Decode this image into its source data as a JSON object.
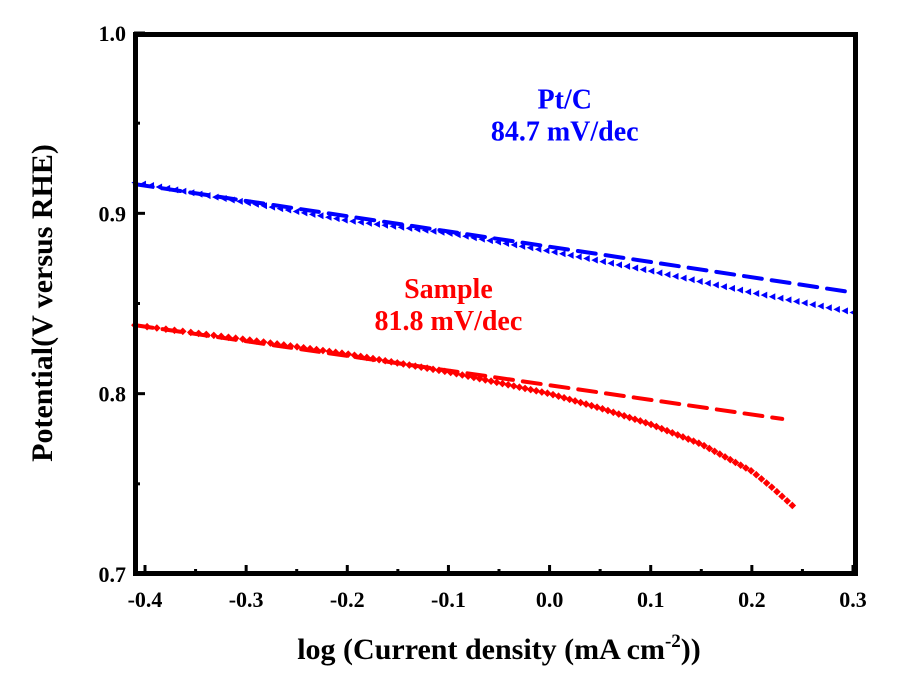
{
  "chart_data": {
    "type": "scatter",
    "title": "",
    "xlabel": "log (Current density (mA cm",
    "xlabel_superscript": "-2",
    "xlabel_suffix": "))",
    "ylabel": "Potential(V versus RHE)",
    "xlim": [
      -0.41,
      0.3
    ],
    "ylim": [
      0.7,
      1.0
    ],
    "grid": false,
    "x_ticks": [
      -0.4,
      -0.3,
      -0.2,
      -0.1,
      0.0,
      0.1,
      0.2,
      0.3
    ],
    "x_tick_labels": [
      "-0.4",
      "-0.3",
      "-0.2",
      "-0.1",
      "0.0",
      "0.1",
      "0.2",
      "0.3"
    ],
    "x_minor_ticks": [
      -0.35,
      -0.25,
      -0.15,
      -0.05,
      0.05,
      0.15,
      0.25
    ],
    "y_ticks": [
      0.7,
      0.8,
      0.9,
      1.0
    ],
    "y_tick_labels": [
      "0.7",
      "0.8",
      "0.9",
      "1.0"
    ],
    "y_minor_ticks": [
      0.75,
      0.85,
      0.95
    ],
    "series": [
      {
        "name": "Pt/C data",
        "marker": "triangle-left",
        "color": "#0000ff",
        "x_start": -0.41,
        "x_end": 0.3,
        "n_points": 90,
        "points": [
          [
            -0.41,
            0.917
          ],
          [
            -0.3,
            0.906
          ],
          [
            -0.2,
            0.896
          ],
          [
            -0.1,
            0.889
          ],
          [
            0.0,
            0.879
          ],
          [
            0.1,
            0.868
          ],
          [
            0.2,
            0.856
          ],
          [
            0.3,
            0.845
          ]
        ]
      },
      {
        "name": "Pt/C Tafel fit",
        "style": "dashed",
        "color": "#0000ff",
        "slope_mV_per_dec": 84.7,
        "points": [
          [
            -0.41,
            0.9162
          ],
          [
            0.3,
            0.8561
          ]
        ]
      },
      {
        "name": "Sample data",
        "marker": "diamond",
        "color": "#ff0000",
        "n_points": 110,
        "points": [
          [
            -0.41,
            0.838
          ],
          [
            -0.3,
            0.83
          ],
          [
            -0.2,
            0.822
          ],
          [
            -0.1,
            0.812
          ],
          [
            0.0,
            0.8
          ],
          [
            0.05,
            0.792
          ],
          [
            0.1,
            0.783
          ],
          [
            0.15,
            0.772
          ],
          [
            0.2,
            0.757
          ],
          [
            0.22,
            0.748
          ],
          [
            0.24,
            0.738
          ]
        ]
      },
      {
        "name": "Sample Tafel fit",
        "style": "dashed",
        "color": "#ff0000",
        "slope_mV_per_dec": 81.8,
        "points": [
          [
            -0.41,
            0.838
          ],
          [
            0.23,
            0.786
          ]
        ]
      }
    ],
    "annotations": [
      {
        "name": "ptc-label",
        "lines": [
          "Pt/C",
          "84.7 mV/dec"
        ],
        "color": "#0000ff",
        "x": 0.015,
        "y_top": 0.958
      },
      {
        "name": "sample-label",
        "lines": [
          "Sample",
          "81.8 mV/dec"
        ],
        "color": "#ff0000",
        "x": -0.1,
        "y_top": 0.853
      }
    ]
  }
}
